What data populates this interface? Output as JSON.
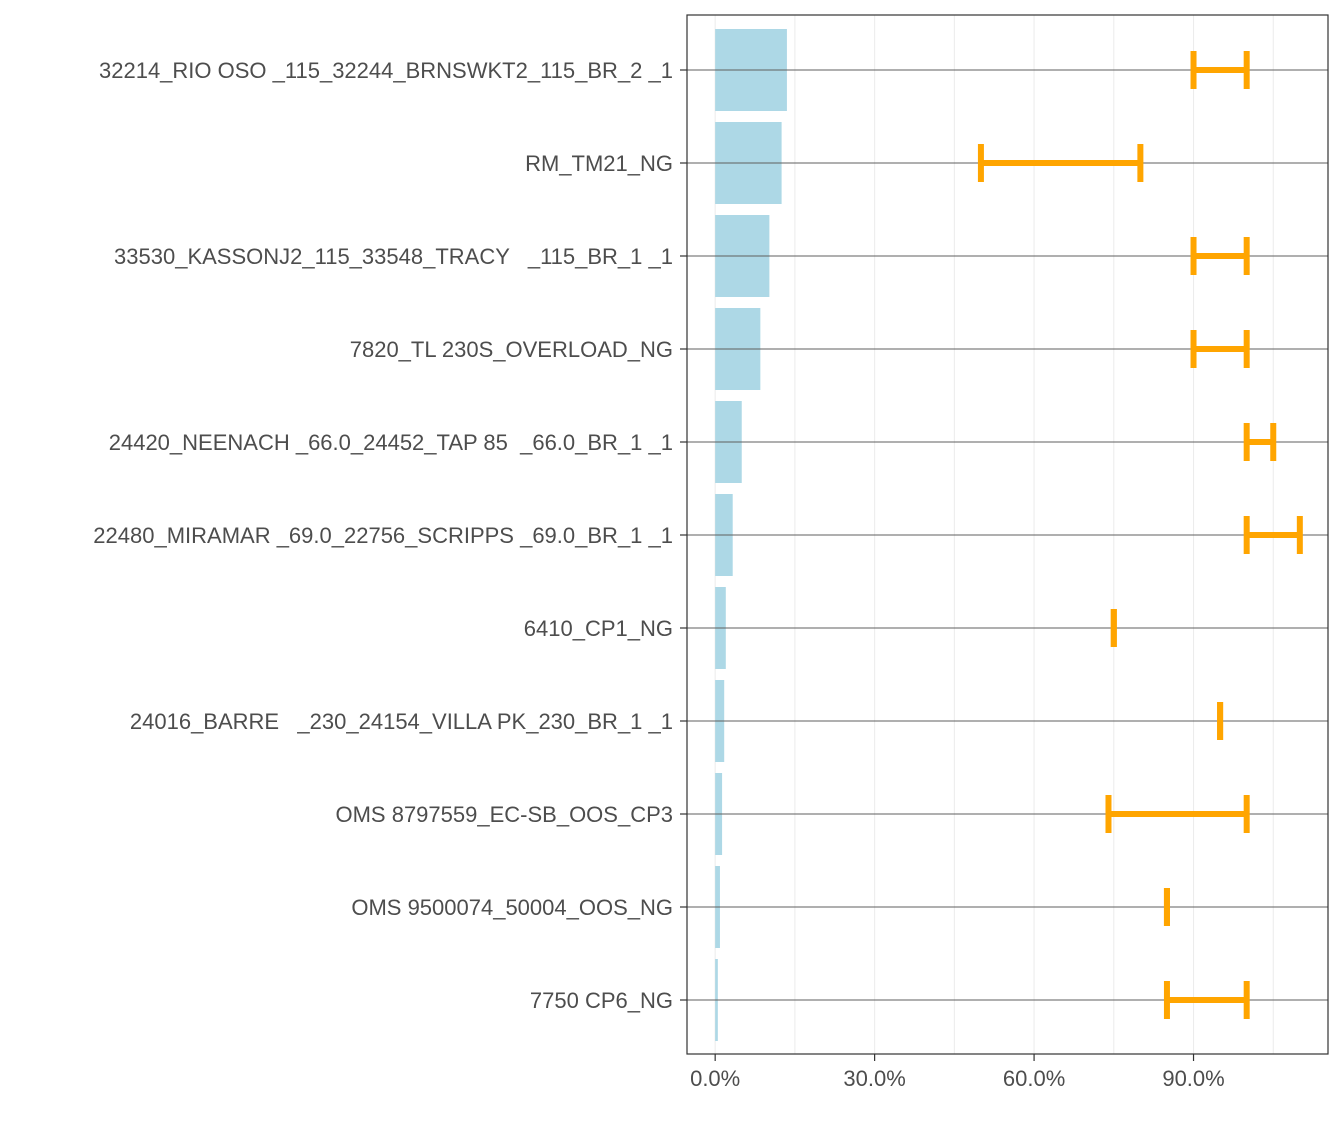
{
  "chart_data": {
    "type": "bar",
    "orientation": "horizontal",
    "categories": [
      "32214_RIO OSO _115_32244_BRNSWKT2_115_BR_2 _1",
      "RM_TM21_NG",
      "33530_KASSONJ2_115_33548_TRACY   _115_BR_1 _1",
      "7820_TL 230S_OVERLOAD_NG",
      "24420_NEENACH _66.0_24452_TAP 85  _66.0_BR_1 _1",
      "22480_MIRAMAR _69.0_22756_SCRIPPS _69.0_BR_1 _1",
      "6410_CP1_NG",
      "24016_BARRE   _230_24154_VILLA PK_230_BR_1 _1",
      "OMS 8797559_EC-SB_OOS_CP3",
      "OMS 9500074_50004_OOS_NG",
      "7750 CP6_NG"
    ],
    "values": [
      13.5,
      12.5,
      10.2,
      8.5,
      5.0,
      3.3,
      2.0,
      1.7,
      1.3,
      0.9,
      0.5
    ],
    "ranges": [
      [
        90,
        100
      ],
      [
        50,
        80
      ],
      [
        90,
        100
      ],
      [
        90,
        100
      ],
      [
        100,
        105
      ],
      [
        100,
        110
      ],
      [
        75,
        75
      ],
      [
        95,
        95
      ],
      [
        74,
        100
      ],
      [
        85,
        85
      ],
      [
        85,
        100
      ]
    ],
    "x_ticks": [
      0,
      30,
      60,
      90
    ],
    "x_tick_labels": [
      "0.0%",
      "30.0%",
      "60.0%",
      "90.0%"
    ],
    "xlim": [
      -5.3,
      115.3
    ],
    "title": "",
    "xlabel": "",
    "ylabel": "",
    "grid": true,
    "colors": {
      "bar": "#add8e6",
      "range": "#ffa500",
      "row_line": "#5f5f5f",
      "grid_minor": "#ebebeb",
      "panel_border": "#333333",
      "text": "#4d4d4d"
    }
  }
}
